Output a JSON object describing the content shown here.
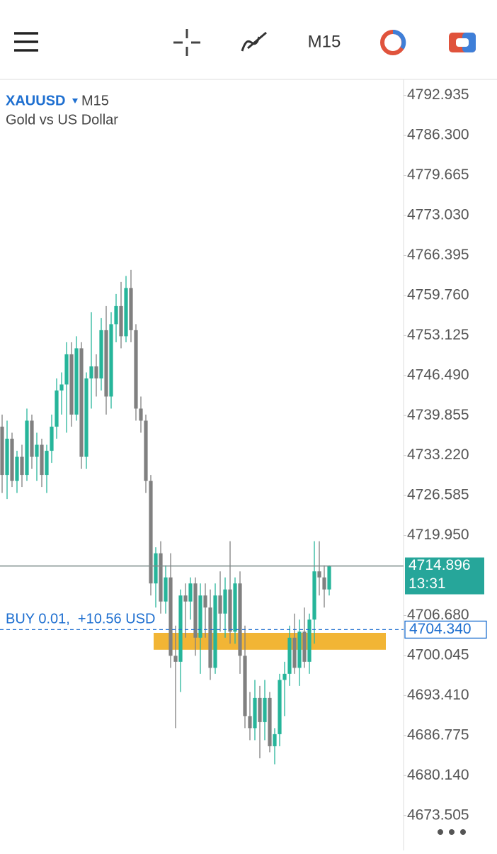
{
  "toolbar": {
    "timeframe": "M15"
  },
  "chart_data": {
    "type": "candlestick",
    "symbol": "XAUUSD",
    "timeframe": "M15",
    "description": "Gold vs US Dollar",
    "up_color": "#26b59a",
    "down_color": "#808080",
    "open": [
      4738,
      4730,
      4736,
      4729,
      4733,
      4730,
      4739,
      4733,
      4735,
      4730,
      4734,
      4738,
      4744,
      4745,
      4750,
      4740,
      4751,
      4733,
      4746,
      4748,
      4746,
      4754,
      4743,
      4755,
      4758,
      4753,
      4761,
      4754,
      4741,
      4739,
      4729,
      4712,
      4717,
      4709,
      4713,
      4700,
      4699,
      4710,
      4709,
      4712,
      4703,
      4710,
      4708,
      4698,
      4710,
      4707,
      4711,
      4704,
      4712,
      4700,
      4690,
      4688,
      4693,
      4689,
      4693,
      4685,
      4687,
      4696,
      4697,
      4703,
      4698,
      4704,
      4699,
      4706,
      4714,
      4713,
      4711
    ],
    "high": [
      4740,
      4739,
      4737,
      4734,
      4735,
      4741,
      4740,
      4737,
      4736,
      4735,
      4740,
      4746,
      4747,
      4752,
      4752,
      4753,
      4752,
      4747,
      4757,
      4750,
      4756,
      4758,
      4757,
      4760,
      4762,
      4763,
      4764,
      4755,
      4743,
      4740,
      4730,
      4718,
      4719,
      4715,
      4717,
      4705,
      4711,
      4712,
      4713,
      4713,
      4712,
      4712,
      4711,
      4712,
      4714,
      4713,
      4719,
      4713,
      4714,
      4705,
      4694,
      4696,
      4695,
      4696,
      4694,
      4688,
      4697,
      4699,
      4705,
      4707,
      4706,
      4708,
      4707,
      4719,
      4719,
      4715,
      4715
    ],
    "low": [
      4727,
      4726,
      4728,
      4727,
      4728,
      4729,
      4731,
      4729,
      4728,
      4727,
      4732,
      4736,
      4740,
      4737,
      4738,
      4739,
      4731,
      4731,
      4741,
      4743,
      4744,
      4740,
      4741,
      4752,
      4751,
      4752,
      4752,
      4739,
      4737,
      4727,
      4710,
      4708,
      4707,
      4707,
      4698,
      4688,
      4694,
      4703,
      4706,
      4700,
      4697,
      4703,
      4696,
      4697,
      4704,
      4703,
      4702,
      4702,
      4697,
      4688,
      4686,
      4686,
      4683,
      4686,
      4684,
      4682,
      4685,
      4690,
      4695,
      4697,
      4695,
      4698,
      4697,
      4702,
      4710,
      4708,
      4710
    ],
    "close": [
      4730,
      4736,
      4729,
      4733,
      4730,
      4739,
      4733,
      4735,
      4730,
      4734,
      4738,
      4744,
      4745,
      4750,
      4740,
      4751,
      4733,
      4746,
      4748,
      4746,
      4754,
      4743,
      4755,
      4758,
      4753,
      4761,
      4754,
      4741,
      4739,
      4729,
      4712,
      4717,
      4709,
      4713,
      4700,
      4699,
      4710,
      4709,
      4712,
      4703,
      4710,
      4708,
      4698,
      4710,
      4707,
      4711,
      4704,
      4712,
      4700,
      4690,
      4688,
      4693,
      4689,
      4693,
      4685,
      4687,
      4696,
      4697,
      4703,
      4698,
      4704,
      4699,
      4706,
      4714,
      4713,
      4711,
      4714.896
    ],
    "ylim": [
      4668.3,
      4795.6
    ],
    "yticks": [
      4792.935,
      {
        "value": 4786.3,
        "label": "4786.300"
      },
      {
        "value": 4779.665,
        "label": "4779.665"
      },
      {
        "value": 4773.03,
        "label": "4773.030"
      },
      {
        "value": 4766.395,
        "label": "4766.395"
      },
      {
        "value": 4759.76,
        "label": "4759.760"
      },
      {
        "value": 4753.125,
        "label": "4753.125"
      },
      {
        "value": 4746.49,
        "label": "4746.490"
      },
      {
        "value": 4739.855,
        "label": "4739.855"
      },
      {
        "value": 4733.22,
        "label": "4733.220"
      },
      {
        "value": 4726.585,
        "label": "4726.585"
      },
      {
        "value": 4719.95,
        "label": "4719.950"
      },
      {
        "value": 4706.68,
        "label": "4706.680"
      },
      {
        "value": 4700.045,
        "label": "4700.045"
      },
      {
        "value": 4693.41,
        "label": "4693.410"
      },
      {
        "value": 4686.775,
        "label": "4686.775"
      },
      {
        "value": 4680.14,
        "label": "4680.140"
      },
      {
        "value": 4673.505,
        "label": "4673.505"
      }
    ],
    "current_price": 4714.896,
    "countdown": "13:31",
    "buy_line": {
      "value": 4704.34,
      "label": "4704.340",
      "text": "BUY 0.01,  +10.56 USD"
    },
    "zone": {
      "low": 4701.0,
      "high": 4703.8,
      "color": "#f2b535"
    }
  }
}
